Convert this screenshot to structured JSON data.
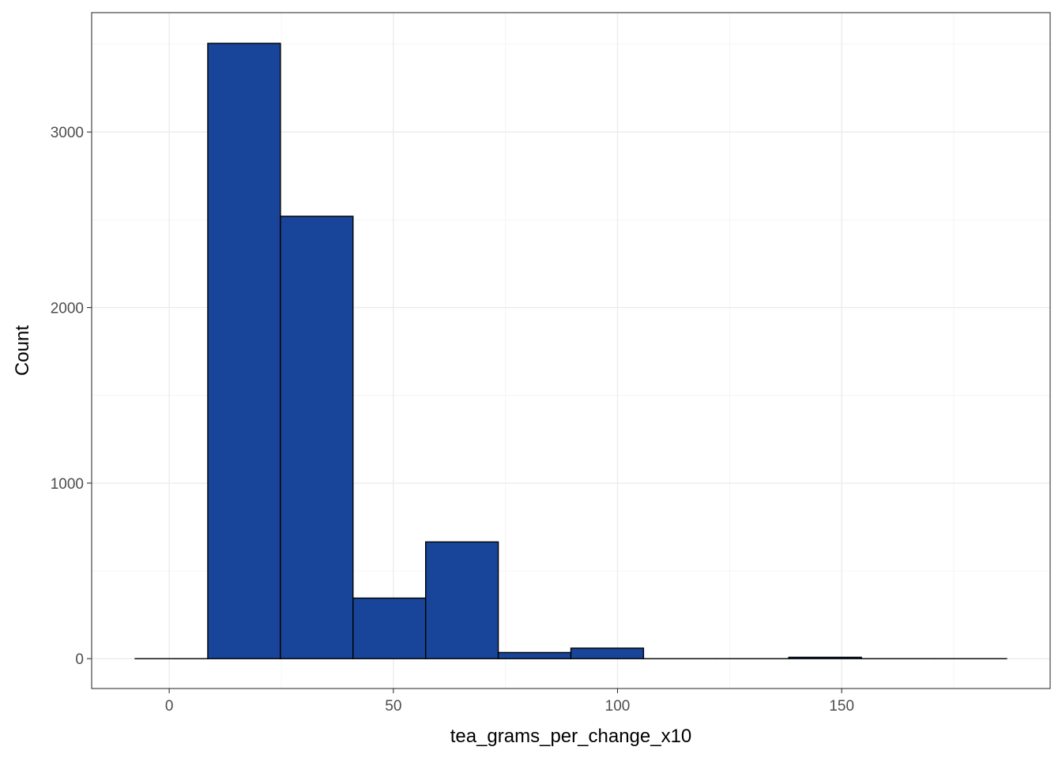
{
  "chart_data": {
    "type": "bar",
    "subtype": "histogram",
    "title": "",
    "xlabel": "tea_grams_per_change_x10",
    "ylabel": "Count",
    "bin_width": 16.2,
    "bins": [
      {
        "x_start": -7.6,
        "x_end": 8.6,
        "count": 0
      },
      {
        "x_start": 8.6,
        "x_end": 24.8,
        "count": 3505
      },
      {
        "x_start": 24.8,
        "x_end": 41.0,
        "count": 2520
      },
      {
        "x_start": 41.0,
        "x_end": 57.2,
        "count": 345
      },
      {
        "x_start": 57.2,
        "x_end": 73.4,
        "count": 665
      },
      {
        "x_start": 73.4,
        "x_end": 89.6,
        "count": 35
      },
      {
        "x_start": 89.6,
        "x_end": 105.8,
        "count": 60
      },
      {
        "x_start": 105.8,
        "x_end": 122.0,
        "count": 0
      },
      {
        "x_start": 122.0,
        "x_end": 138.2,
        "count": 0
      },
      {
        "x_start": 138.2,
        "x_end": 154.4,
        "count": 8
      },
      {
        "x_start": 154.4,
        "x_end": 170.6,
        "count": 0
      },
      {
        "x_start": 170.6,
        "x_end": 186.8,
        "count": 0
      }
    ],
    "xlim": [
      -17.3,
      196.5
    ],
    "ylim": [
      -170,
      3680
    ],
    "x_ticks": [
      0,
      50,
      100,
      150
    ],
    "x_tick_labels": [
      "0",
      "50",
      "100",
      "150"
    ],
    "x_minor_ticks": [
      -25,
      25,
      75,
      125,
      175
    ],
    "y_ticks": [
      0,
      1000,
      2000,
      3000
    ],
    "y_tick_labels": [
      "0",
      "1000",
      "2000",
      "3000"
    ],
    "y_minor_ticks": [
      500,
      1500,
      2500,
      3500
    ],
    "grid": true,
    "legend": "none",
    "colors": {
      "bar_fill": "#184599",
      "bar_outline": "#000000",
      "grid_major": "#ebebeb",
      "grid_minor": "#f4f4f4",
      "panel_border": "#333333",
      "tick_text": "#4d4d4d"
    }
  }
}
